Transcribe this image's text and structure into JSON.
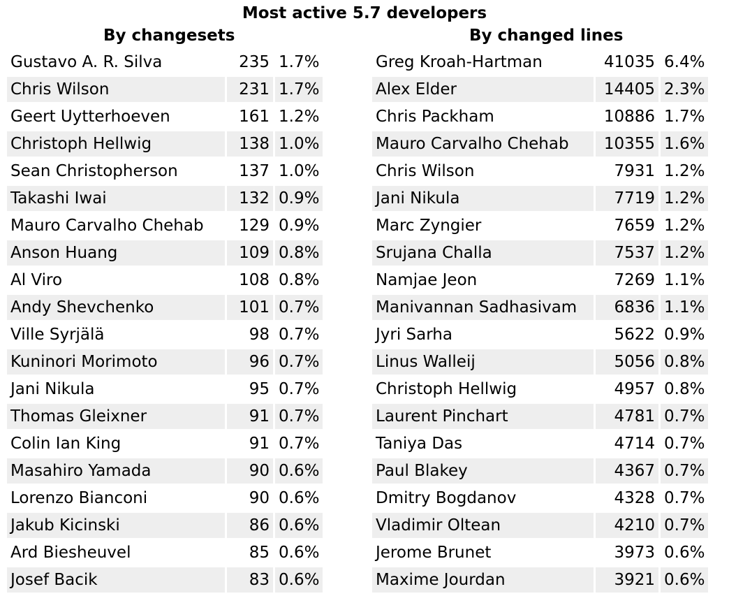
{
  "title": "Most active 5.7 developers",
  "by_changesets": {
    "heading": "By changesets",
    "rows": [
      {
        "name": "Gustavo A. R. Silva",
        "count": "235",
        "pct": "1.7%"
      },
      {
        "name": "Chris Wilson",
        "count": "231",
        "pct": "1.7%"
      },
      {
        "name": "Geert Uytterhoeven",
        "count": "161",
        "pct": "1.2%"
      },
      {
        "name": "Christoph Hellwig",
        "count": "138",
        "pct": "1.0%"
      },
      {
        "name": "Sean Christopherson",
        "count": "137",
        "pct": "1.0%"
      },
      {
        "name": "Takashi Iwai",
        "count": "132",
        "pct": "0.9%"
      },
      {
        "name": "Mauro Carvalho Chehab",
        "count": "129",
        "pct": "0.9%"
      },
      {
        "name": "Anson Huang",
        "count": "109",
        "pct": "0.8%"
      },
      {
        "name": "Al Viro",
        "count": "108",
        "pct": "0.8%"
      },
      {
        "name": "Andy Shevchenko",
        "count": "101",
        "pct": "0.7%"
      },
      {
        "name": "Ville Syrjälä",
        "count": "98",
        "pct": "0.7%"
      },
      {
        "name": "Kuninori Morimoto",
        "count": "96",
        "pct": "0.7%"
      },
      {
        "name": "Jani Nikula",
        "count": "95",
        "pct": "0.7%"
      },
      {
        "name": "Thomas Gleixner",
        "count": "91",
        "pct": "0.7%"
      },
      {
        "name": "Colin Ian King",
        "count": "91",
        "pct": "0.7%"
      },
      {
        "name": "Masahiro Yamada",
        "count": "90",
        "pct": "0.6%"
      },
      {
        "name": "Lorenzo Bianconi",
        "count": "90",
        "pct": "0.6%"
      },
      {
        "name": "Jakub Kicinski",
        "count": "86",
        "pct": "0.6%"
      },
      {
        "name": "Ard Biesheuvel",
        "count": "85",
        "pct": "0.6%"
      },
      {
        "name": "Josef Bacik",
        "count": "83",
        "pct": "0.6%"
      }
    ]
  },
  "by_changed_lines": {
    "heading": "By changed lines",
    "rows": [
      {
        "name": "Greg Kroah-Hartman",
        "count": "41035",
        "pct": "6.4%"
      },
      {
        "name": "Alex Elder",
        "count": "14405",
        "pct": "2.3%"
      },
      {
        "name": "Chris Packham",
        "count": "10886",
        "pct": "1.7%"
      },
      {
        "name": "Mauro Carvalho Chehab",
        "count": "10355",
        "pct": "1.6%"
      },
      {
        "name": "Chris Wilson",
        "count": "7931",
        "pct": "1.2%"
      },
      {
        "name": "Jani Nikula",
        "count": "7719",
        "pct": "1.2%"
      },
      {
        "name": "Marc Zyngier",
        "count": "7659",
        "pct": "1.2%"
      },
      {
        "name": "Srujana Challa",
        "count": "7537",
        "pct": "1.2%"
      },
      {
        "name": "Namjae Jeon",
        "count": "7269",
        "pct": "1.1%"
      },
      {
        "name": "Manivannan Sadhasivam",
        "count": "6836",
        "pct": "1.1%"
      },
      {
        "name": "Jyri Sarha",
        "count": "5622",
        "pct": "0.9%"
      },
      {
        "name": "Linus Walleij",
        "count": "5056",
        "pct": "0.8%"
      },
      {
        "name": "Christoph Hellwig",
        "count": "4957",
        "pct": "0.8%"
      },
      {
        "name": "Laurent Pinchart",
        "count": "4781",
        "pct": "0.7%"
      },
      {
        "name": "Taniya Das",
        "count": "4714",
        "pct": "0.7%"
      },
      {
        "name": "Paul Blakey",
        "count": "4367",
        "pct": "0.7%"
      },
      {
        "name": "Dmitry Bogdanov",
        "count": "4328",
        "pct": "0.7%"
      },
      {
        "name": "Vladimir Oltean",
        "count": "4210",
        "pct": "0.7%"
      },
      {
        "name": "Jerome Brunet",
        "count": "3973",
        "pct": "0.6%"
      },
      {
        "name": "Maxime Jourdan",
        "count": "3921",
        "pct": "0.6%"
      }
    ]
  }
}
